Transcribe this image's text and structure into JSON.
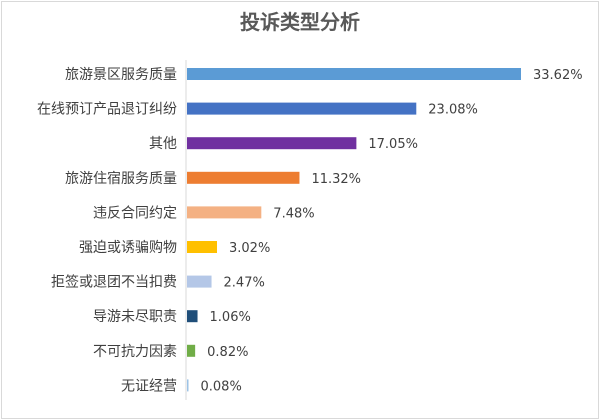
{
  "chart_data": {
    "type": "bar",
    "orientation": "horizontal",
    "title": "投诉类型分析",
    "categories": [
      "旅游景区服务质量",
      "在线预订产品退订纠纷",
      "其他",
      "旅游住宿服务质量",
      "违反合同约定",
      "强迫或诱骗购物",
      "拒签或退团不当扣费",
      "导游未尽职责",
      "不可抗力因素",
      "无证经营"
    ],
    "values": [
      33.62,
      23.08,
      17.05,
      11.32,
      7.48,
      3.02,
      2.47,
      1.06,
      0.82,
      0.08
    ],
    "labels": [
      "33.62%",
      "23.08%",
      "17.05%",
      "11.32%",
      "7.48%",
      "3.02%",
      "2.47%",
      "1.06%",
      "0.82%",
      "0.08%"
    ],
    "colors": [
      "#5B9BD5",
      "#4472C4",
      "#7030A0",
      "#ED7D31",
      "#F4B183",
      "#FFC000",
      "#B4C7E7",
      "#1F4E79",
      "#70AD47",
      "#9DC3E6"
    ],
    "unit": "%",
    "xlim": [
      0,
      40
    ],
    "grid": false,
    "legend": "none",
    "xlabel": "",
    "ylabel": ""
  }
}
